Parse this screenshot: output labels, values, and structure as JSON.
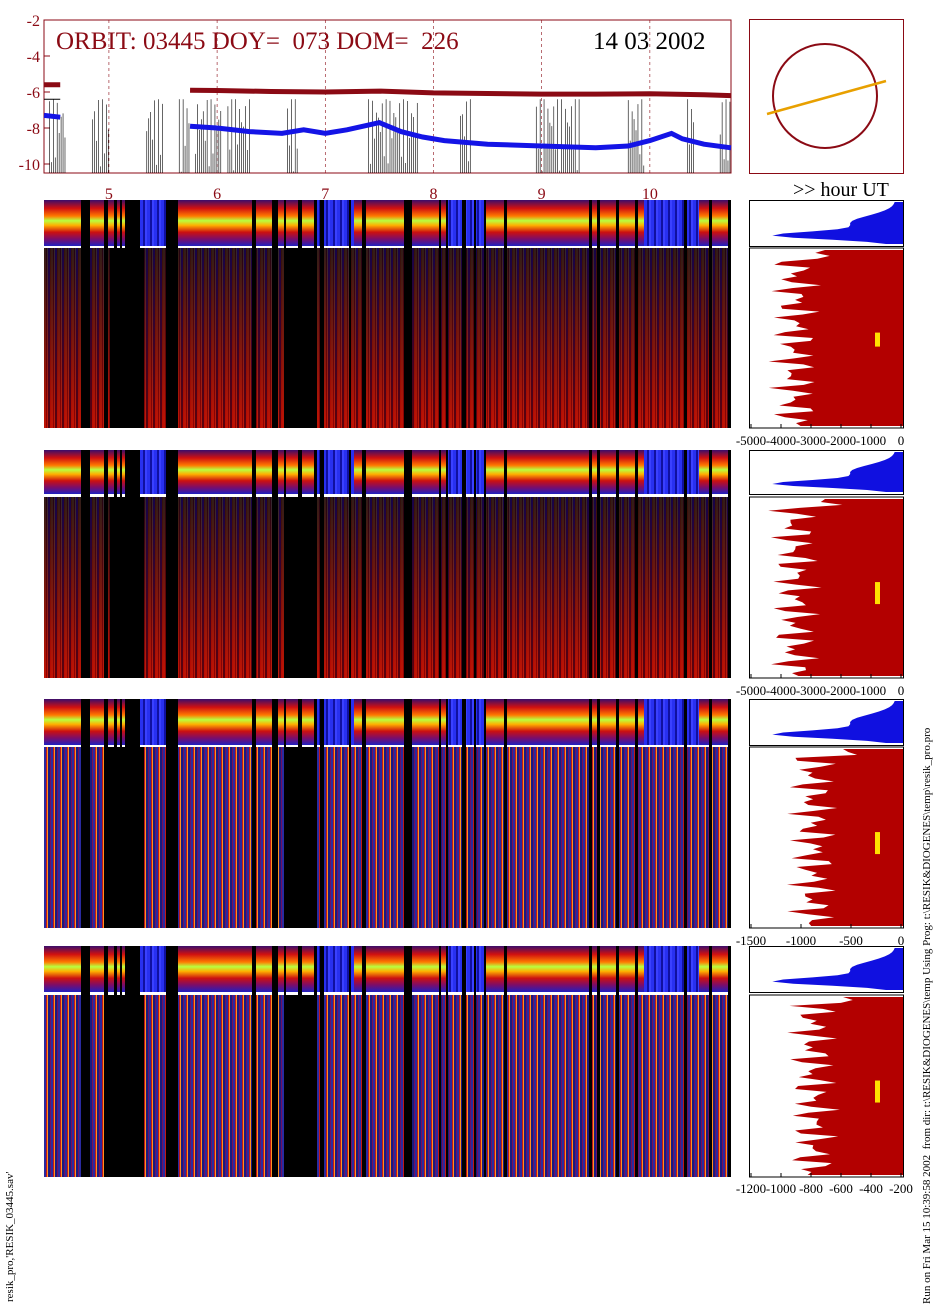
{
  "header": {
    "orbit_label": "ORBIT: 03445 DOY=  073 DOM=  226",
    "date_label": "14 03 2002",
    "hour_ut_label": ">> hour UT"
  },
  "chart_data": [
    {
      "type": "line",
      "name": "top-orbit-plot",
      "ylim": [
        -10.5,
        -2
      ],
      "yticks": [
        "-2",
        "-4",
        "-6",
        "-8",
        "-10"
      ],
      "xlim": [
        4.4,
        10.75
      ],
      "xticks": [
        "5",
        "6",
        "7",
        "8",
        "9",
        "10"
      ],
      "series": [
        {
          "color": "#8b0a14",
          "x": [
            4.4,
            4.55,
            5.75,
            6.0,
            6.5,
            7.0,
            7.5,
            8.0,
            8.5,
            9.0,
            9.5,
            10.0,
            10.5,
            10.75
          ],
          "values": [
            -5.6,
            -5.6,
            -5.9,
            -5.92,
            -5.97,
            -6.0,
            -5.95,
            -6.05,
            -6.08,
            -6.12,
            -6.12,
            -6.1,
            -6.15,
            -6.2
          ]
        },
        {
          "color": "#1414e6",
          "x": [
            4.4,
            4.55,
            5.75,
            6.0,
            6.3,
            6.6,
            6.8,
            7.0,
            7.2,
            7.5,
            7.7,
            7.9,
            8.1,
            8.5,
            9.0,
            9.5,
            9.8,
            10.0,
            10.2,
            10.3,
            10.5,
            10.75
          ],
          "values": [
            -7.3,
            -7.4,
            -7.9,
            -8.0,
            -8.2,
            -8.3,
            -8.1,
            -8.3,
            -8.1,
            -7.7,
            -8.2,
            -8.5,
            -8.7,
            -8.9,
            -9.0,
            -9.1,
            -9.0,
            -8.7,
            -8.3,
            -8.6,
            -8.9,
            -9.1
          ]
        }
      ]
    },
    {
      "type": "scatter",
      "name": "orbit-circle",
      "series": [
        {
          "name": "",
          "color": "#e8a000"
        }
      ]
    },
    {
      "type": "area",
      "name": "profile-1",
      "xticks": [
        "-5000",
        "-4000",
        "-3000",
        "-2000",
        "-1000",
        "0"
      ]
    },
    {
      "type": "area",
      "name": "profile-2",
      "xticks": [
        "-5000",
        "-4000",
        "-3000",
        "-2000",
        "-1000",
        "0"
      ]
    },
    {
      "type": "area",
      "name": "profile-3",
      "xticks": [
        "-1500",
        "-1000",
        "-500",
        "0"
      ]
    },
    {
      "type": "area",
      "name": "profile-4",
      "xticks": [
        "-1200",
        "-1000",
        "-800",
        "-600",
        "-400",
        "-200"
      ]
    }
  ],
  "colors": {
    "maroon": "#8b0a14",
    "blue": "#1414e6",
    "profile_red": "#b30000",
    "profile_blue": "#1010e0",
    "yellow": "#ffe000",
    "orange": "#e8a000"
  },
  "footer": {
    "left_vertical": "resik_pro,'RESIK_03445.sav'",
    "right_vertical": "Run on Fri Mar 15 10:39:58 2002  from dir: t:\\RESIK&DIOGENES\\temp Using Prog: t:\\RESIK&DIOGENES\\temp\\resik_pro.pro"
  }
}
